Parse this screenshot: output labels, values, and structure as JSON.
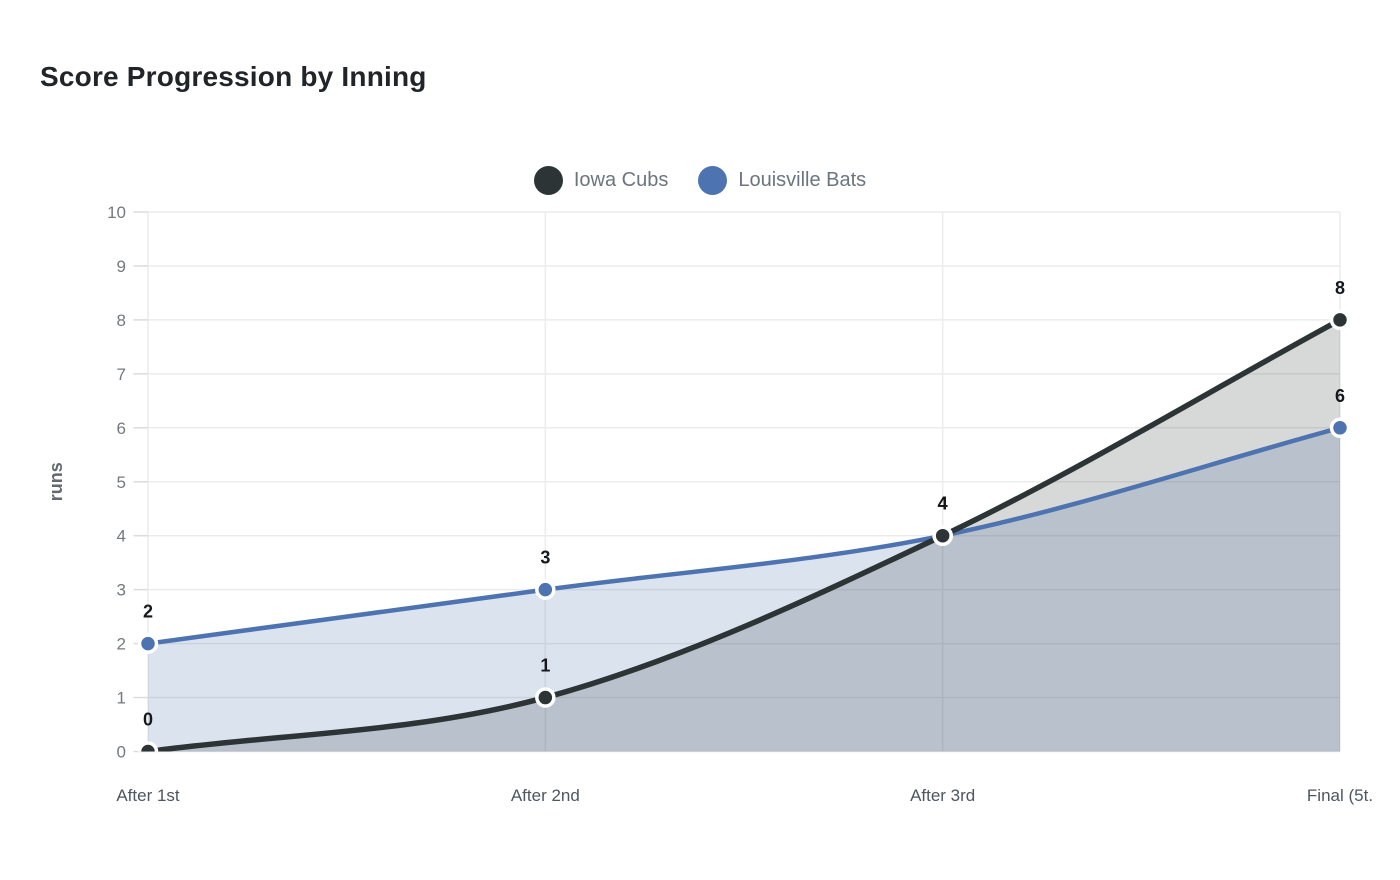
{
  "title": {
    "text": "Score Progression by Inning",
    "color": "#212529"
  },
  "legend": {
    "text_color": "#6c757d",
    "items": [
      {
        "label": "Iowa Cubs",
        "color": "#2d3436"
      },
      {
        "label": "Louisville Bats",
        "color": "#4d73b0"
      }
    ]
  },
  "axis": {
    "grid_color": "#ececec",
    "tick_color": "#dcdcdc",
    "y_tick_label_color": "#74797e",
    "x_tick_label_color": "#4e565e",
    "axis_title_color": "#63696e",
    "value_label_color": "#15181b"
  },
  "chart_data": {
    "type": "area",
    "title": "Score Progression by Inning",
    "categories": [
      "After 1st",
      "After 2nd",
      "After 3rd",
      "Final (5t."
    ],
    "series": [
      {
        "name": "Iowa Cubs",
        "values": [
          0,
          1,
          4,
          8
        ],
        "color": "#2d3436",
        "fill_opacity": 0.19,
        "line_width": 5.5
      },
      {
        "name": "Louisville Bats",
        "values": [
          2,
          3,
          4,
          6
        ],
        "color": "#4d73b0",
        "fill_opacity": 0.2,
        "line_width": 4.5
      }
    ],
    "xlabel": "",
    "ylabel": "runs",
    "ylim": [
      0,
      10
    ],
    "yticks": [
      0,
      1,
      2,
      3,
      4,
      5,
      6,
      7,
      8,
      9,
      10
    ],
    "grid": true,
    "legend_position": "top",
    "point_labels_visible": true,
    "curve": "monotone"
  }
}
